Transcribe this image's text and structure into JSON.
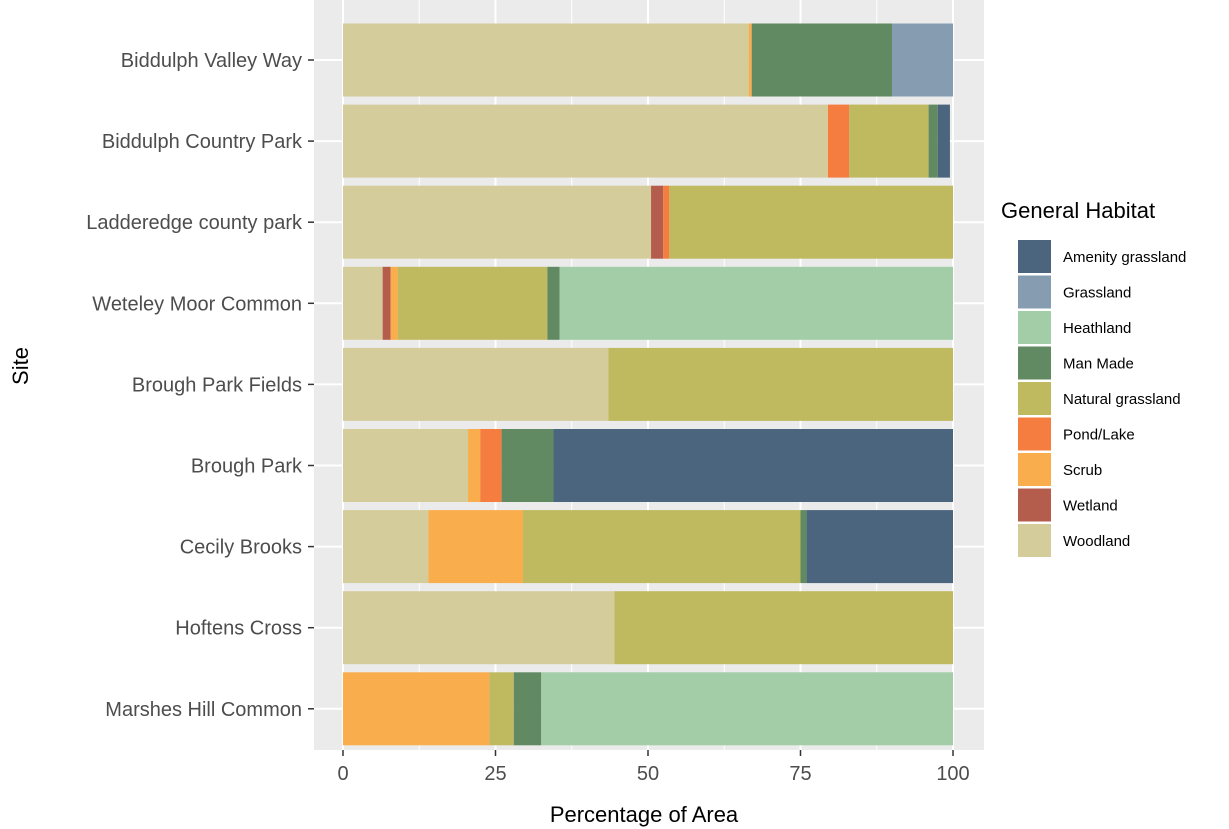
{
  "chart_data": {
    "type": "bar",
    "orientation": "horizontal",
    "stacked": true,
    "xlabel": "Percentage of Area",
    "ylabel": "Site",
    "xlim": [
      0,
      100
    ],
    "xticks": [
      0,
      25,
      50,
      75,
      100
    ],
    "grid": true,
    "legend": {
      "title": "General Habitat",
      "placement": "right"
    },
    "categories": [
      "Biddulph Valley Way",
      "Biddulph Country Park",
      "Ladderedge county park",
      "Weteley Moor Common",
      "Brough Park Fields",
      "Brough Park",
      "Cecily Brooks",
      "Hoftens Cross",
      "Marshes Hill Common"
    ],
    "series": [
      {
        "name": "Woodland",
        "color": "#d5cc9c",
        "values": [
          66.5,
          79.5,
          50.5,
          6.5,
          43.5,
          20.5,
          14,
          44.5,
          0
        ]
      },
      {
        "name": "Wetland",
        "color": "#b55d4c",
        "values": [
          0,
          0,
          2,
          1.3,
          0,
          0,
          0,
          0,
          0
        ]
      },
      {
        "name": "Scrub",
        "color": "#f9ad4c",
        "values": [
          0.5,
          0,
          0,
          1.2,
          0,
          2,
          15.5,
          0,
          24
        ]
      },
      {
        "name": "Pond/Lake",
        "color": "#f47d3f",
        "values": [
          0,
          3.5,
          1,
          0,
          0,
          3.5,
          0,
          0,
          0
        ]
      },
      {
        "name": "Natural grassland",
        "color": "#bfba5f",
        "values": [
          0,
          13,
          46.5,
          24.5,
          56.5,
          0,
          45.5,
          55.5,
          4
        ]
      },
      {
        "name": "Man Made",
        "color": "#628a62",
        "values": [
          23,
          1.5,
          0,
          2,
          0,
          8.5,
          1,
          0,
          4.5
        ]
      },
      {
        "name": "Heathland",
        "color": "#a2cda7",
        "values": [
          0,
          0,
          0,
          64.5,
          0,
          0,
          0,
          0,
          67.5
        ]
      },
      {
        "name": "Grassland",
        "color": "#869cb1",
        "values": [
          10,
          0,
          0,
          0,
          0,
          0,
          0,
          0,
          0
        ]
      },
      {
        "name": "Amenity grassland",
        "color": "#4b657e",
        "values": [
          0,
          2,
          0,
          0,
          0,
          65.5,
          24,
          0,
          0
        ]
      }
    ],
    "legend_order": [
      "Amenity grassland",
      "Grassland",
      "Heathland",
      "Man Made",
      "Natural grassland",
      "Pond/Lake",
      "Scrub",
      "Wetland",
      "Woodland"
    ]
  },
  "colors": {
    "panel": "#ebebeb",
    "grid": "#ffffff",
    "text": "#4d4d4d"
  }
}
